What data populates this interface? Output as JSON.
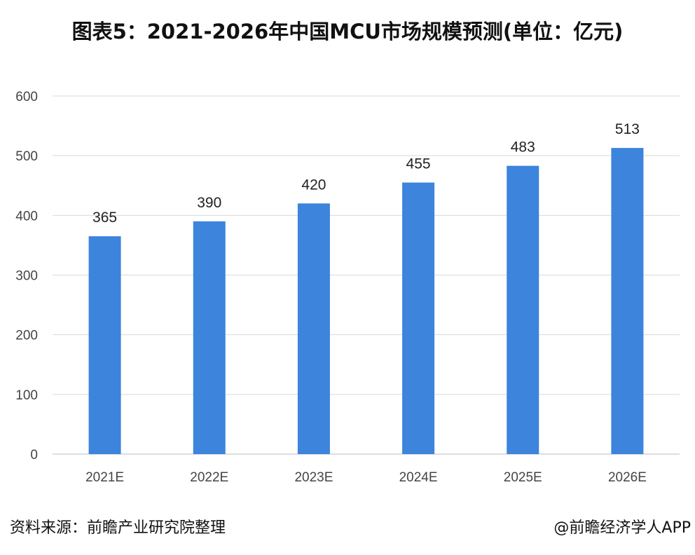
{
  "chart_data": {
    "type": "bar",
    "title": "图表5：2021-2026年中国MCU市场规模预测(单位：亿元)",
    "categories": [
      "2021E",
      "2022E",
      "2023E",
      "2024E",
      "2025E",
      "2026E"
    ],
    "values": [
      365,
      390,
      420,
      455,
      483,
      513
    ],
    "xlabel": "",
    "ylabel": "",
    "ylim": [
      0,
      600
    ],
    "yticks": [
      0,
      100,
      200,
      300,
      400,
      500,
      600
    ],
    "grid": true,
    "data_labels": true,
    "bar_color": "#3c84dc"
  },
  "footer": {
    "source": "资料来源：前瞻产业研究院整理",
    "credit": "@前瞻经济学人APP"
  }
}
